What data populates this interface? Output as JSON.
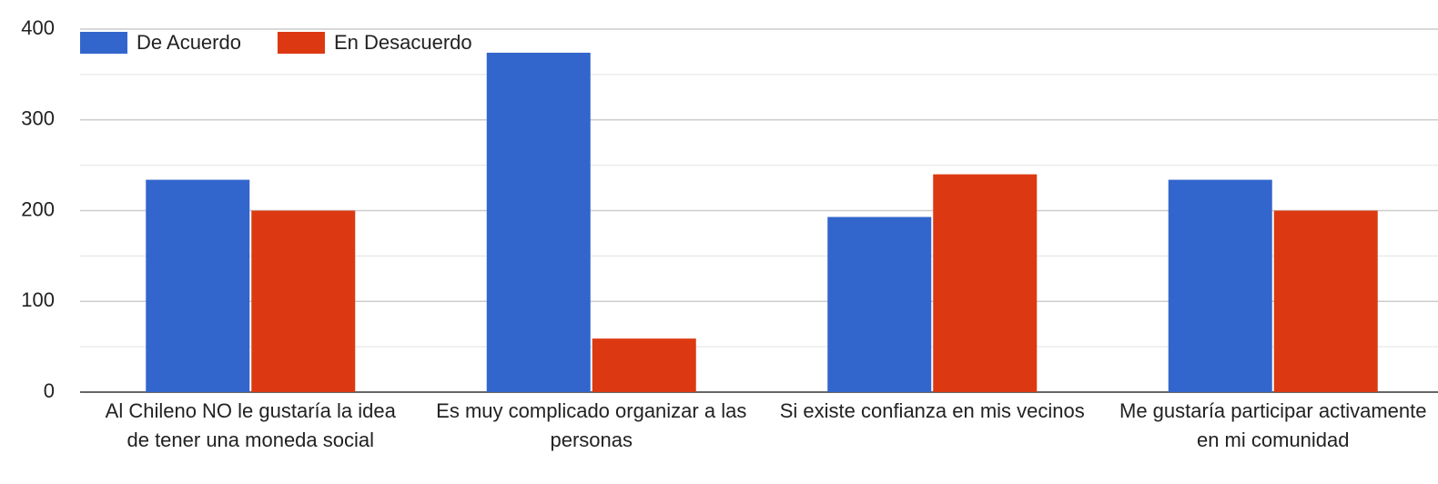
{
  "chart_data": {
    "type": "bar",
    "categories": [
      "Al Chileno NO le gustaría la idea de tener una moneda social",
      "Es muy complicado organizar a las personas",
      "Si existe confianza en mis vecinos",
      "Me gustaría participar activamente en mi comunidad"
    ],
    "series": [
      {
        "name": "De Acuerdo",
        "color": "#3366cc",
        "values": [
          234,
          374,
          193,
          234
        ]
      },
      {
        "name": "En Desacuerdo",
        "color": "#dc3912",
        "values": [
          200,
          59,
          240,
          200
        ]
      }
    ],
    "ylim": [
      0,
      400
    ],
    "yticks": [
      0,
      100,
      200,
      300,
      400
    ],
    "grid": true,
    "legend": "top-left"
  }
}
